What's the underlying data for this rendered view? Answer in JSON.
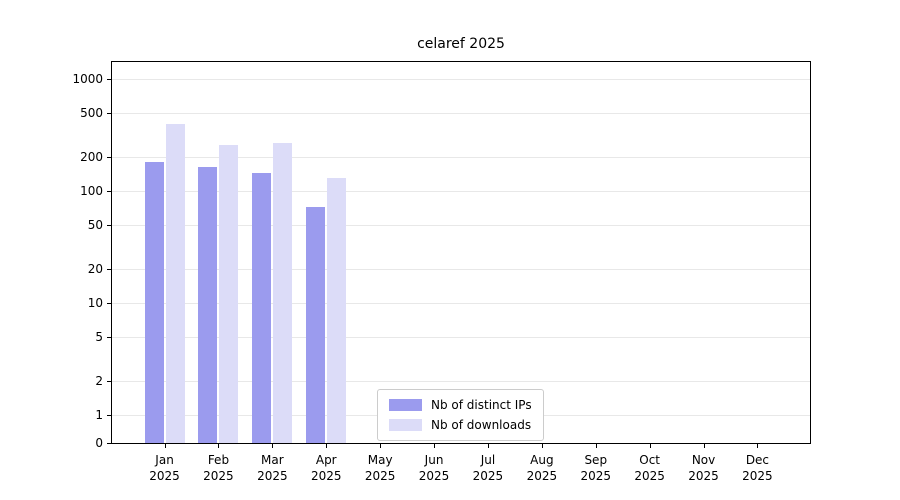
{
  "chart_data": {
    "type": "bar",
    "title": "celaref 2025",
    "categories": [
      "Jan 2025",
      "Feb 2025",
      "Mar 2025",
      "Apr 2025",
      "May 2025",
      "Jun 2025",
      "Jul 2025",
      "Aug 2025",
      "Sep 2025",
      "Oct 2025",
      "Nov 2025",
      "Dec 2025"
    ],
    "series": [
      {
        "name": "Nb of distinct IPs",
        "color": "#9b9bee",
        "values": [
          180,
          165,
          145,
          72,
          0,
          0,
          0,
          0,
          0,
          0,
          0,
          0
        ]
      },
      {
        "name": "Nb of downloads",
        "color": "#dcdcf8",
        "values": [
          400,
          255,
          270,
          130,
          0,
          0,
          0,
          0,
          0,
          0,
          0,
          0
        ]
      }
    ],
    "yticks": [
      0,
      1,
      2,
      5,
      10,
      20,
      50,
      100,
      200,
      500,
      1000
    ],
    "yscale": "symlog",
    "ylim": [
      0,
      1500
    ],
    "xlabel": "",
    "ylabel": "",
    "grid": "horizontal",
    "legend_position": "bottom-center"
  }
}
